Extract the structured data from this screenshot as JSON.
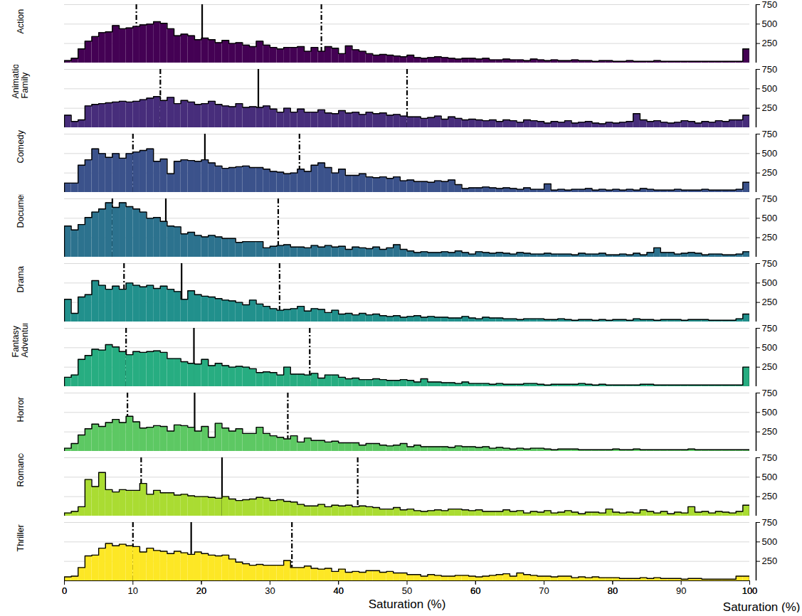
{
  "chart_data": {
    "type": "histogram",
    "x_label": "Saturation (%)",
    "xlim": [
      0,
      100
    ],
    "xticks": [
      0,
      20,
      40,
      60,
      80,
      100
    ],
    "ylim": [
      0,
      750
    ],
    "yticks": [
      250,
      500,
      750
    ],
    "grid": true,
    "bins": [
      0,
      1,
      2,
      3,
      4,
      5,
      6,
      7,
      8,
      9,
      10,
      11,
      12,
      13,
      14,
      15,
      16,
      17,
      18,
      19,
      20,
      21,
      22,
      23,
      24,
      25,
      26,
      27,
      28,
      29,
      30,
      31,
      32,
      33,
      34,
      35,
      36,
      37,
      38,
      39,
      40,
      41,
      42,
      43,
      44,
      45,
      46,
      47,
      48,
      49,
      50,
      51,
      52,
      53,
      54,
      55,
      56,
      57,
      58,
      59,
      60,
      61,
      62,
      63,
      64,
      65,
      66,
      67,
      68,
      69,
      70,
      71,
      72,
      73,
      74,
      75,
      76,
      77,
      78,
      79,
      80,
      81,
      82,
      83,
      84,
      85,
      86,
      87,
      88,
      89,
      90,
      91,
      92,
      93,
      94,
      95,
      96,
      97,
      98,
      99,
      100
    ],
    "series": [
      {
        "name": "Action",
        "color": "#440154",
        "values": [
          30,
          60,
          180,
          280,
          340,
          390,
          400,
          480,
          440,
          450,
          470,
          490,
          500,
          530,
          510,
          440,
          350,
          370,
          350,
          300,
          320,
          300,
          260,
          290,
          250,
          260,
          230,
          210,
          280,
          230,
          200,
          180,
          200,
          200,
          210,
          150,
          200,
          150,
          210,
          190,
          120,
          220,
          170,
          150,
          120,
          100,
          110,
          100,
          90,
          80,
          100,
          70,
          60,
          70,
          80,
          70,
          60,
          50,
          60,
          60,
          50,
          60,
          40,
          40,
          50,
          40,
          40,
          30,
          50,
          40,
          30,
          40,
          30,
          30,
          40,
          30,
          30,
          20,
          30,
          30,
          20,
          20,
          30,
          20,
          20,
          20,
          30,
          20,
          20,
          20,
          20,
          20,
          20,
          20,
          20,
          20,
          20,
          20,
          20,
          180
        ],
        "lines": [
          {
            "value": 10.5,
            "line_style": "dashdot"
          },
          {
            "value": 20.1,
            "line_style": "solid"
          },
          {
            "value": 37.5,
            "line_style": "dashdot"
          }
        ]
      },
      {
        "name": "Animation\nFamily",
        "color": "#472D7B",
        "values": [
          160,
          80,
          100,
          280,
          300,
          310,
          320,
          330,
          340,
          330,
          340,
          360,
          380,
          400,
          350,
          390,
          310,
          350,
          330,
          300,
          310,
          340,
          300,
          280,
          270,
          310,
          260,
          270,
          260,
          280,
          240,
          200,
          250,
          200,
          240,
          200,
          200,
          230,
          190,
          180,
          220,
          190,
          200,
          170,
          200,
          180,
          190,
          160,
          170,
          150,
          140,
          140,
          120,
          130,
          150,
          110,
          140,
          120,
          100,
          110,
          100,
          90,
          100,
          80,
          100,
          90,
          70,
          100,
          90,
          80,
          60,
          80,
          70,
          90,
          60,
          70,
          80,
          60,
          50,
          70,
          60,
          70,
          80,
          180,
          100,
          80,
          90,
          70,
          60,
          70,
          90,
          80,
          60,
          80,
          70,
          90,
          80,
          100,
          100,
          160
        ],
        "lines": [
          {
            "value": 14,
            "line_style": "dashdot"
          },
          {
            "value": 28.3,
            "line_style": "solid"
          },
          {
            "value": 50,
            "line_style": "dashdot"
          }
        ]
      },
      {
        "name": "Comedy",
        "color": "#3B528B",
        "values": [
          120,
          120,
          350,
          420,
          560,
          500,
          450,
          500,
          440,
          500,
          520,
          540,
          560,
          400,
          430,
          240,
          400,
          420,
          410,
          400,
          420,
          380,
          340,
          310,
          320,
          330,
          340,
          320,
          320,
          300,
          270,
          260,
          240,
          250,
          300,
          270,
          350,
          380,
          320,
          250,
          300,
          220,
          220,
          240,
          200,
          190,
          200,
          180,
          200,
          150,
          160,
          140,
          140,
          130,
          150,
          140,
          160,
          100,
          50,
          60,
          60,
          70,
          60,
          50,
          60,
          50,
          40,
          60,
          40,
          40,
          110,
          30,
          40,
          30,
          40,
          40,
          50,
          30,
          40,
          30,
          40,
          30,
          40,
          30,
          50,
          40,
          30,
          30,
          30,
          40,
          30,
          30,
          30,
          40,
          30,
          30,
          30,
          30,
          40,
          130
        ],
        "lines": [
          {
            "value": 10,
            "line_style": "dashdot"
          },
          {
            "value": 20.5,
            "line_style": "solid"
          },
          {
            "value": 34.3,
            "line_style": "dashdot"
          }
        ]
      },
      {
        "name": "Documentary",
        "color": "#2C728E",
        "values": [
          400,
          350,
          420,
          510,
          580,
          620,
          700,
          640,
          700,
          650,
          620,
          580,
          500,
          510,
          460,
          400,
          390,
          300,
          320,
          280,
          260,
          280,
          260,
          240,
          240,
          190,
          200,
          200,
          200,
          120,
          140,
          150,
          160,
          130,
          130,
          120,
          150,
          130,
          150,
          130,
          140,
          100,
          130,
          120,
          110,
          130,
          100,
          120,
          160,
          100,
          80,
          60,
          70,
          60,
          60,
          70,
          60,
          80,
          60,
          40,
          70,
          60,
          50,
          60,
          50,
          40,
          60,
          50,
          40,
          40,
          50,
          40,
          40,
          40,
          30,
          50,
          40,
          40,
          50,
          30,
          30,
          40,
          30,
          50,
          30,
          60,
          120,
          60,
          60,
          40,
          50,
          60,
          50,
          30,
          40,
          40,
          30,
          30,
          40,
          70
        ],
        "lines": [
          {
            "value": 7,
            "line_style": "dashdot"
          },
          {
            "value": 14.8,
            "line_style": "solid"
          },
          {
            "value": 31.2,
            "line_style": "dashdot"
          }
        ]
      },
      {
        "name": "Drama",
        "color": "#21908C",
        "values": [
          290,
          110,
          320,
          350,
          530,
          470,
          420,
          460,
          420,
          500,
          470,
          450,
          470,
          430,
          460,
          420,
          390,
          290,
          400,
          350,
          330,
          320,
          300,
          280,
          270,
          250,
          220,
          280,
          230,
          200,
          170,
          150,
          160,
          170,
          200,
          140,
          170,
          160,
          120,
          150,
          100,
          110,
          90,
          110,
          90,
          100,
          80,
          70,
          80,
          60,
          70,
          80,
          60,
          70,
          60,
          60,
          50,
          50,
          70,
          50,
          40,
          60,
          50,
          50,
          40,
          40,
          30,
          40,
          40,
          40,
          30,
          30,
          40,
          30,
          20,
          30,
          30,
          20,
          30,
          20,
          30,
          30,
          20,
          40,
          30,
          30,
          20,
          30,
          30,
          30,
          20,
          30,
          30,
          30,
          20,
          20,
          20,
          20,
          40,
          100
        ],
        "lines": [
          {
            "value": 8.7,
            "line_style": "dashdot"
          },
          {
            "value": 17.1,
            "line_style": "solid"
          },
          {
            "value": 31.4,
            "line_style": "dashdot"
          }
        ]
      },
      {
        "name": "Fantasy\nAdventure",
        "color": "#27AD81",
        "values": [
          120,
          150,
          350,
          400,
          480,
          470,
          540,
          510,
          450,
          410,
          450,
          440,
          450,
          460,
          440,
          360,
          360,
          320,
          300,
          290,
          350,
          270,
          300,
          270,
          250,
          260,
          250,
          230,
          180,
          190,
          180,
          150,
          250,
          160,
          160,
          150,
          170,
          110,
          150,
          150,
          120,
          100,
          110,
          90,
          90,
          100,
          90,
          80,
          80,
          90,
          80,
          60,
          100,
          60,
          60,
          50,
          50,
          40,
          60,
          40,
          40,
          40,
          30,
          40,
          30,
          30,
          30,
          40,
          40,
          30,
          20,
          30,
          30,
          30,
          30,
          40,
          30,
          20,
          30,
          20,
          20,
          20,
          20,
          20,
          30,
          30,
          20,
          20,
          20,
          20,
          20,
          20,
          20,
          20,
          20,
          20,
          20,
          20,
          20,
          250
        ],
        "lines": [
          {
            "value": 9,
            "line_style": "dashdot"
          },
          {
            "value": 18.9,
            "line_style": "solid"
          },
          {
            "value": 35.8,
            "line_style": "dashdot"
          }
        ]
      },
      {
        "name": "Horror",
        "color": "#5DC863",
        "values": [
          40,
          100,
          210,
          290,
          350,
          320,
          370,
          410,
          370,
          450,
          380,
          300,
          310,
          330,
          320,
          260,
          340,
          330,
          310,
          260,
          320,
          180,
          360,
          300,
          260,
          290,
          230,
          230,
          310,
          230,
          200,
          180,
          160,
          200,
          120,
          170,
          140,
          140,
          120,
          130,
          110,
          110,
          110,
          80,
          100,
          100,
          80,
          70,
          80,
          100,
          60,
          80,
          60,
          60,
          60,
          60,
          50,
          70,
          60,
          60,
          50,
          60,
          40,
          50,
          40,
          30,
          40,
          30,
          40,
          40,
          30,
          20,
          30,
          30,
          30,
          20,
          20,
          20,
          20,
          20,
          30,
          20,
          20,
          30,
          20,
          20,
          20,
          20,
          20,
          20,
          20,
          30,
          20,
          20,
          20,
          20,
          20,
          20,
          20,
          20
        ],
        "lines": [
          {
            "value": 9.2,
            "line_style": "dashdot"
          },
          {
            "value": 19,
            "line_style": "solid"
          },
          {
            "value": 32.6,
            "line_style": "dashdot"
          }
        ]
      },
      {
        "name": "Romance",
        "color": "#AADC32",
        "values": [
          40,
          60,
          120,
          470,
          380,
          560,
          340,
          310,
          340,
          330,
          330,
          420,
          280,
          330,
          300,
          300,
          270,
          280,
          260,
          250,
          250,
          240,
          230,
          250,
          220,
          200,
          210,
          220,
          240,
          230,
          200,
          210,
          190,
          180,
          150,
          130,
          130,
          150,
          120,
          140,
          130,
          140,
          120,
          130,
          120,
          110,
          90,
          90,
          110,
          80,
          90,
          70,
          60,
          70,
          80,
          70,
          90,
          90,
          80,
          70,
          80,
          60,
          60,
          60,
          80,
          60,
          70,
          40,
          60,
          50,
          70,
          40,
          50,
          70,
          50,
          30,
          50,
          50,
          40,
          90,
          50,
          40,
          50,
          40,
          80,
          60,
          40,
          60,
          30,
          50,
          40,
          120,
          50,
          60,
          40,
          60,
          50,
          40,
          60,
          140
        ],
        "lines": [
          {
            "value": 11.2,
            "line_style": "dashdot"
          },
          {
            "value": 23,
            "line_style": "solid"
          },
          {
            "value": 42.8,
            "line_style": "dashdot"
          }
        ]
      },
      {
        "name": "Thriller",
        "color": "#FDE725",
        "values": [
          50,
          60,
          170,
          320,
          330,
          420,
          480,
          450,
          470,
          450,
          440,
          370,
          420,
          390,
          380,
          350,
          380,
          360,
          340,
          370,
          350,
          330,
          320,
          330,
          280,
          240,
          220,
          200,
          210,
          200,
          200,
          200,
          260,
          170,
          170,
          190,
          160,
          150,
          160,
          120,
          150,
          110,
          120,
          110,
          130,
          130,
          110,
          120,
          100,
          100,
          80,
          80,
          60,
          80,
          70,
          60,
          60,
          70,
          70,
          60,
          50,
          60,
          70,
          80,
          90,
          60,
          100,
          80,
          70,
          60,
          60,
          50,
          60,
          60,
          40,
          50,
          40,
          50,
          40,
          40,
          40,
          30,
          30,
          30,
          40,
          30,
          40,
          30,
          30,
          30,
          20,
          30,
          30,
          20,
          20,
          20,
          20,
          20,
          60,
          60
        ],
        "lines": [
          {
            "value": 10,
            "line_style": "dashdot"
          },
          {
            "value": 18.5,
            "line_style": "solid"
          },
          {
            "value": 33.2,
            "line_style": "dashdot"
          }
        ]
      }
    ]
  }
}
